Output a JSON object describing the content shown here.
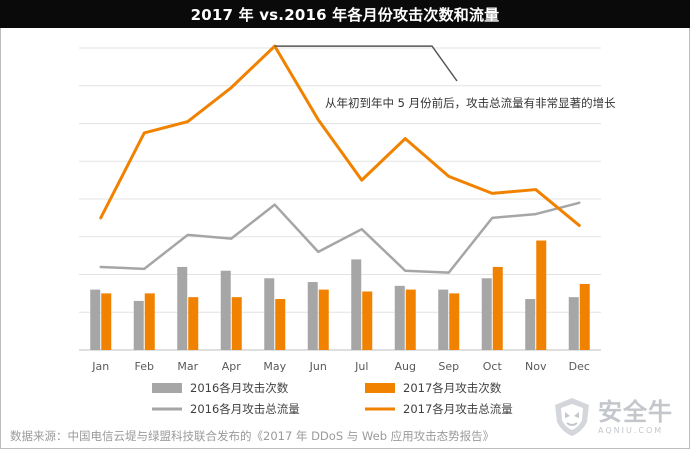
{
  "page": {
    "source_note": "数据来源：中国电信云堤与绿盟科技联合发布的《2017 年 DDoS 与 Web 应用攻击态势报告》",
    "watermark": {
      "text": "安全牛",
      "sub": "AQNIU.COM"
    }
  },
  "chart_data": {
    "type": "bar+line",
    "title": "2017 年 vs.2016 年各月份攻击次数和流量",
    "categories": [
      "Jan",
      "Feb",
      "Mar",
      "Apr",
      "May",
      "Jun",
      "Jul",
      "Aug",
      "Sep",
      "Oct",
      "Nov",
      "Dec"
    ],
    "ylim": [
      0,
      8
    ],
    "grid": true,
    "legend_position": "bottom",
    "series": [
      {
        "name": "2016各月攻击次数",
        "kind": "bar",
        "color": "#a6a6a6",
        "values": [
          1.6,
          1.3,
          2.2,
          2.1,
          1.9,
          1.8,
          2.4,
          1.7,
          1.6,
          1.9,
          1.35,
          1.4
        ]
      },
      {
        "name": "2017各月攻击次数",
        "kind": "bar",
        "color": "#f08200",
        "values": [
          1.5,
          1.5,
          1.4,
          1.4,
          1.35,
          1.6,
          1.55,
          1.6,
          1.5,
          2.2,
          2.9,
          1.75
        ]
      },
      {
        "name": "2016各月攻击总流量",
        "kind": "line",
        "color": "#a6a6a6",
        "values": [
          2.2,
          2.15,
          3.05,
          2.95,
          3.85,
          2.6,
          3.2,
          2.1,
          2.05,
          3.5,
          3.6,
          3.9
        ]
      },
      {
        "name": "2017各月攻击总流量",
        "kind": "line",
        "color": "#f08200",
        "values": [
          3.5,
          5.75,
          6.05,
          6.95,
          8.05,
          6.1,
          4.5,
          5.6,
          4.6,
          4.15,
          4.25,
          3.3
        ]
      }
    ],
    "annotation": {
      "text": "从年初到年中 5 月份前后，攻击总流量有非常显著的增长",
      "callout_from": "May"
    }
  }
}
